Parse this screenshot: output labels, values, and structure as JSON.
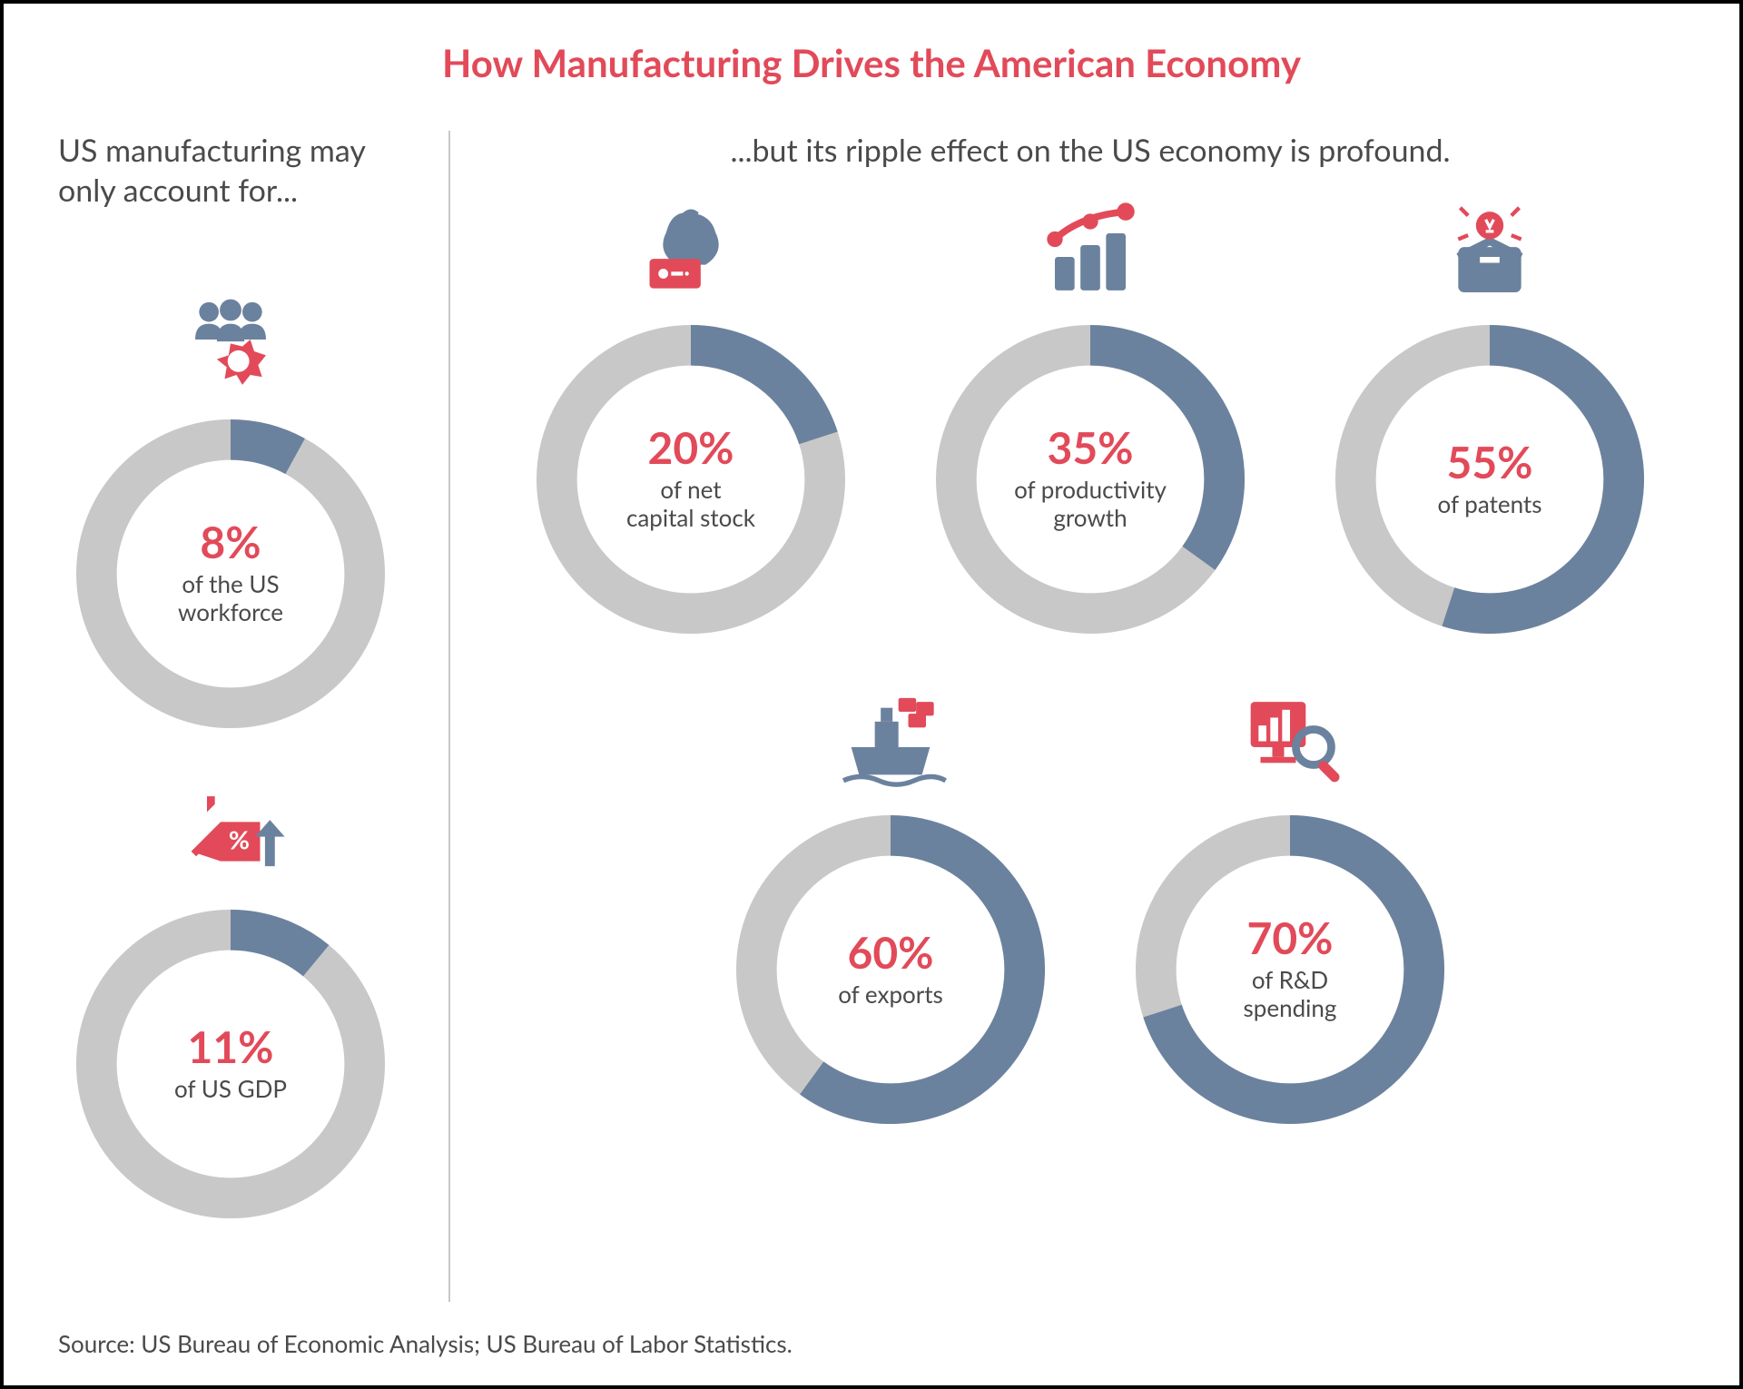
{
  "colors": {
    "title": "#e24a59",
    "subhead": "#4a4a4a",
    "ring_bg": "#c8c8c8",
    "ring_fill": "#6b829e",
    "pct": "#e24a59",
    "label": "#4a4a4a",
    "source": "#4a4a4a",
    "icon_slate": "#6b829e",
    "icon_red": "#e24a59"
  },
  "donut": {
    "outer_radius": 160,
    "stroke_width": 42
  },
  "title": "How Manufacturing Drives the American Economy",
  "left": {
    "subhead": "US manufacturing may only account for...",
    "stats": [
      {
        "id": "workforce",
        "pct": 8,
        "pct_text": "8%",
        "label": "of the US\nworkforce",
        "icon": "workforce"
      },
      {
        "id": "gdp",
        "pct": 11,
        "pct_text": "11%",
        "label": "of US GDP",
        "icon": "gdp"
      }
    ]
  },
  "right": {
    "subhead": "...but its ripple effect on the US economy is profound.",
    "rows": [
      [
        {
          "id": "capital",
          "pct": 20,
          "pct_text": "20%",
          "label": "of net\ncapital stock",
          "icon": "capital"
        },
        {
          "id": "productivity",
          "pct": 35,
          "pct_text": "35%",
          "label": "of productivity\ngrowth",
          "icon": "productivity"
        },
        {
          "id": "patents",
          "pct": 55,
          "pct_text": "55%",
          "label": "of patents",
          "icon": "patents"
        }
      ],
      [
        {
          "id": "exports",
          "pct": 60,
          "pct_text": "60%",
          "label": "of exports",
          "icon": "exports"
        },
        {
          "id": "rd",
          "pct": 70,
          "pct_text": "70%",
          "label": "of R&D\nspending",
          "icon": "rd"
        }
      ]
    ]
  },
  "source": "Source: US Bureau of Economic Analysis; US Bureau of Labor Statistics."
}
